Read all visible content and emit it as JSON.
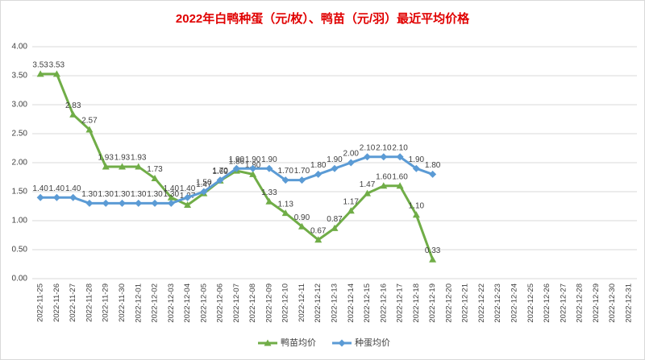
{
  "chart_data": {
    "type": "line",
    "title": "2022年白鸭种蛋（元/枚）、鸭苗（元/羽）最近平均价格",
    "categories": [
      "2022-11-25",
      "2022-11-26",
      "2022-11-27",
      "2022-11-28",
      "2022-11-29",
      "2022-11-30",
      "2022-12-01",
      "2022-12-02",
      "2022-12-03",
      "2022-12-04",
      "2022-12-05",
      "2022-12-06",
      "2022-12-07",
      "2022-12-08",
      "2022-12-09",
      "2022-12-10",
      "2022-12-11",
      "2022-12-12",
      "2022-12-13",
      "2022-12-14",
      "2022-12-15",
      "2022-12-16",
      "2022-12-17",
      "2022-12-18",
      "2022-12-19",
      "2022-12-20",
      "2022-12-21",
      "2022-12-22",
      "2022-12-23",
      "2022-12-24",
      "2022-12-25",
      "2022-12-26",
      "2022-12-27",
      "2022-12-28",
      "2022-12-29",
      "2022-12-30",
      "2022-12-31"
    ],
    "series": [
      {
        "name": "鸭苗均价",
        "color": "#70ad47",
        "marker": "triangle",
        "values": [
          3.53,
          3.53,
          2.83,
          2.57,
          1.93,
          1.93,
          1.93,
          1.73,
          1.4,
          1.27,
          1.47,
          1.69,
          1.86,
          1.8,
          1.33,
          1.13,
          0.9,
          0.67,
          0.87,
          1.17,
          1.47,
          1.6,
          1.6,
          1.1,
          0.33,
          null,
          null,
          null,
          null,
          null,
          null,
          null,
          null,
          null,
          null,
          null,
          null
        ],
        "value_labels": [
          "3.53",
          "3.53",
          "2.83",
          "2.57",
          "1.93",
          "1.93",
          "1.93",
          "1.73",
          "1.40",
          "1.27",
          "1.47",
          "1.69",
          "1.86",
          "1.80",
          "1.33",
          "1.13",
          "0.90",
          "0.67",
          "0.87",
          "1.17",
          "1.47",
          "1.60",
          "1.60",
          "1.10",
          "0.33",
          null,
          null,
          null,
          null,
          null,
          null,
          null,
          null,
          null,
          null,
          null,
          null
        ]
      },
      {
        "name": "种蛋均价",
        "color": "#5b9bd5",
        "marker": "diamond",
        "values": [
          1.4,
          1.4,
          1.4,
          1.3,
          1.3,
          1.3,
          1.3,
          1.3,
          1.3,
          1.4,
          1.5,
          1.7,
          1.9,
          1.9,
          1.9,
          1.7,
          1.7,
          1.8,
          1.9,
          2.0,
          2.1,
          2.1,
          2.1,
          1.9,
          1.8,
          null,
          null,
          null,
          null,
          null,
          null,
          null,
          null,
          null,
          null,
          null,
          null
        ],
        "value_labels": [
          "1.40",
          "1.40",
          "1.40",
          "1.30",
          "1.30",
          "1.30",
          "1.30",
          "1.30",
          "1.30",
          "1.40",
          "1.50",
          "1.70",
          "1.90",
          "1.90",
          "1.90",
          "1.70",
          "1.70",
          "1.80",
          "1.90",
          "2.00",
          "2.10",
          "2.10",
          "2.10",
          "1.90",
          "1.80",
          null,
          null,
          null,
          null,
          null,
          null,
          null,
          null,
          null,
          null,
          null,
          null
        ]
      }
    ],
    "ylim": [
      0,
      4
    ],
    "yticks": [
      {
        "value": 0,
        "label": "0.00"
      },
      {
        "value": 0.5,
        "label": "0.50"
      },
      {
        "value": 1,
        "label": "1.00"
      },
      {
        "value": 1.5,
        "label": "1.50"
      },
      {
        "value": 2,
        "label": "2.00"
      },
      {
        "value": 2.5,
        "label": "2.50"
      },
      {
        "value": 3,
        "label": "3.00"
      },
      {
        "value": 3.5,
        "label": "3.50"
      },
      {
        "value": 4,
        "label": "4.00"
      }
    ],
    "grid": true,
    "legend": "bottom"
  }
}
